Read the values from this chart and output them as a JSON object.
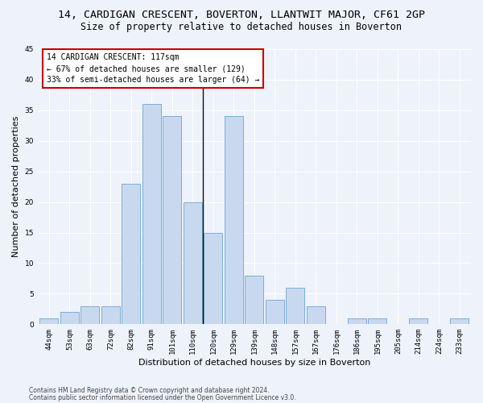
{
  "title": "14, CARDIGAN CRESCENT, BOVERTON, LLANTWIT MAJOR, CF61 2GP",
  "subtitle": "Size of property relative to detached houses in Boverton",
  "xlabel": "Distribution of detached houses by size in Boverton",
  "ylabel": "Number of detached properties",
  "bin_labels": [
    "44sqm",
    "53sqm",
    "63sqm",
    "72sqm",
    "82sqm",
    "91sqm",
    "101sqm",
    "110sqm",
    "120sqm",
    "129sqm",
    "139sqm",
    "148sqm",
    "157sqm",
    "167sqm",
    "176sqm",
    "186sqm",
    "195sqm",
    "205sqm",
    "214sqm",
    "224sqm",
    "233sqm"
  ],
  "bar_values": [
    1,
    2,
    3,
    3,
    23,
    36,
    34,
    20,
    15,
    34,
    8,
    4,
    6,
    3,
    0,
    1,
    1,
    0,
    1,
    0,
    1
  ],
  "bar_color": "#c8d9ef",
  "bar_edgecolor": "#7aafd4",
  "vline_index": 7.5,
  "vline_color": "#111111",
  "annotation_text": "14 CARDIGAN CRESCENT: 117sqm\n← 67% of detached houses are smaller (129)\n33% of semi-detached houses are larger (64) →",
  "annotation_box_facecolor": "#ffffff",
  "annotation_box_edgecolor": "#cc0000",
  "ylim": [
    0,
    45
  ],
  "yticks": [
    0,
    5,
    10,
    15,
    20,
    25,
    30,
    35,
    40,
    45
  ],
  "background_color": "#eef2fb",
  "grid_color": "#ffffff",
  "footer_line1": "Contains HM Land Registry data © Crown copyright and database right 2024.",
  "footer_line2": "Contains public sector information licensed under the Open Government Licence v3.0.",
  "title_fontsize": 9.5,
  "subtitle_fontsize": 8.5,
  "ylabel_fontsize": 8,
  "xlabel_fontsize": 8,
  "tick_fontsize": 6.5,
  "annotation_fontsize": 7,
  "footer_fontsize": 5.5
}
